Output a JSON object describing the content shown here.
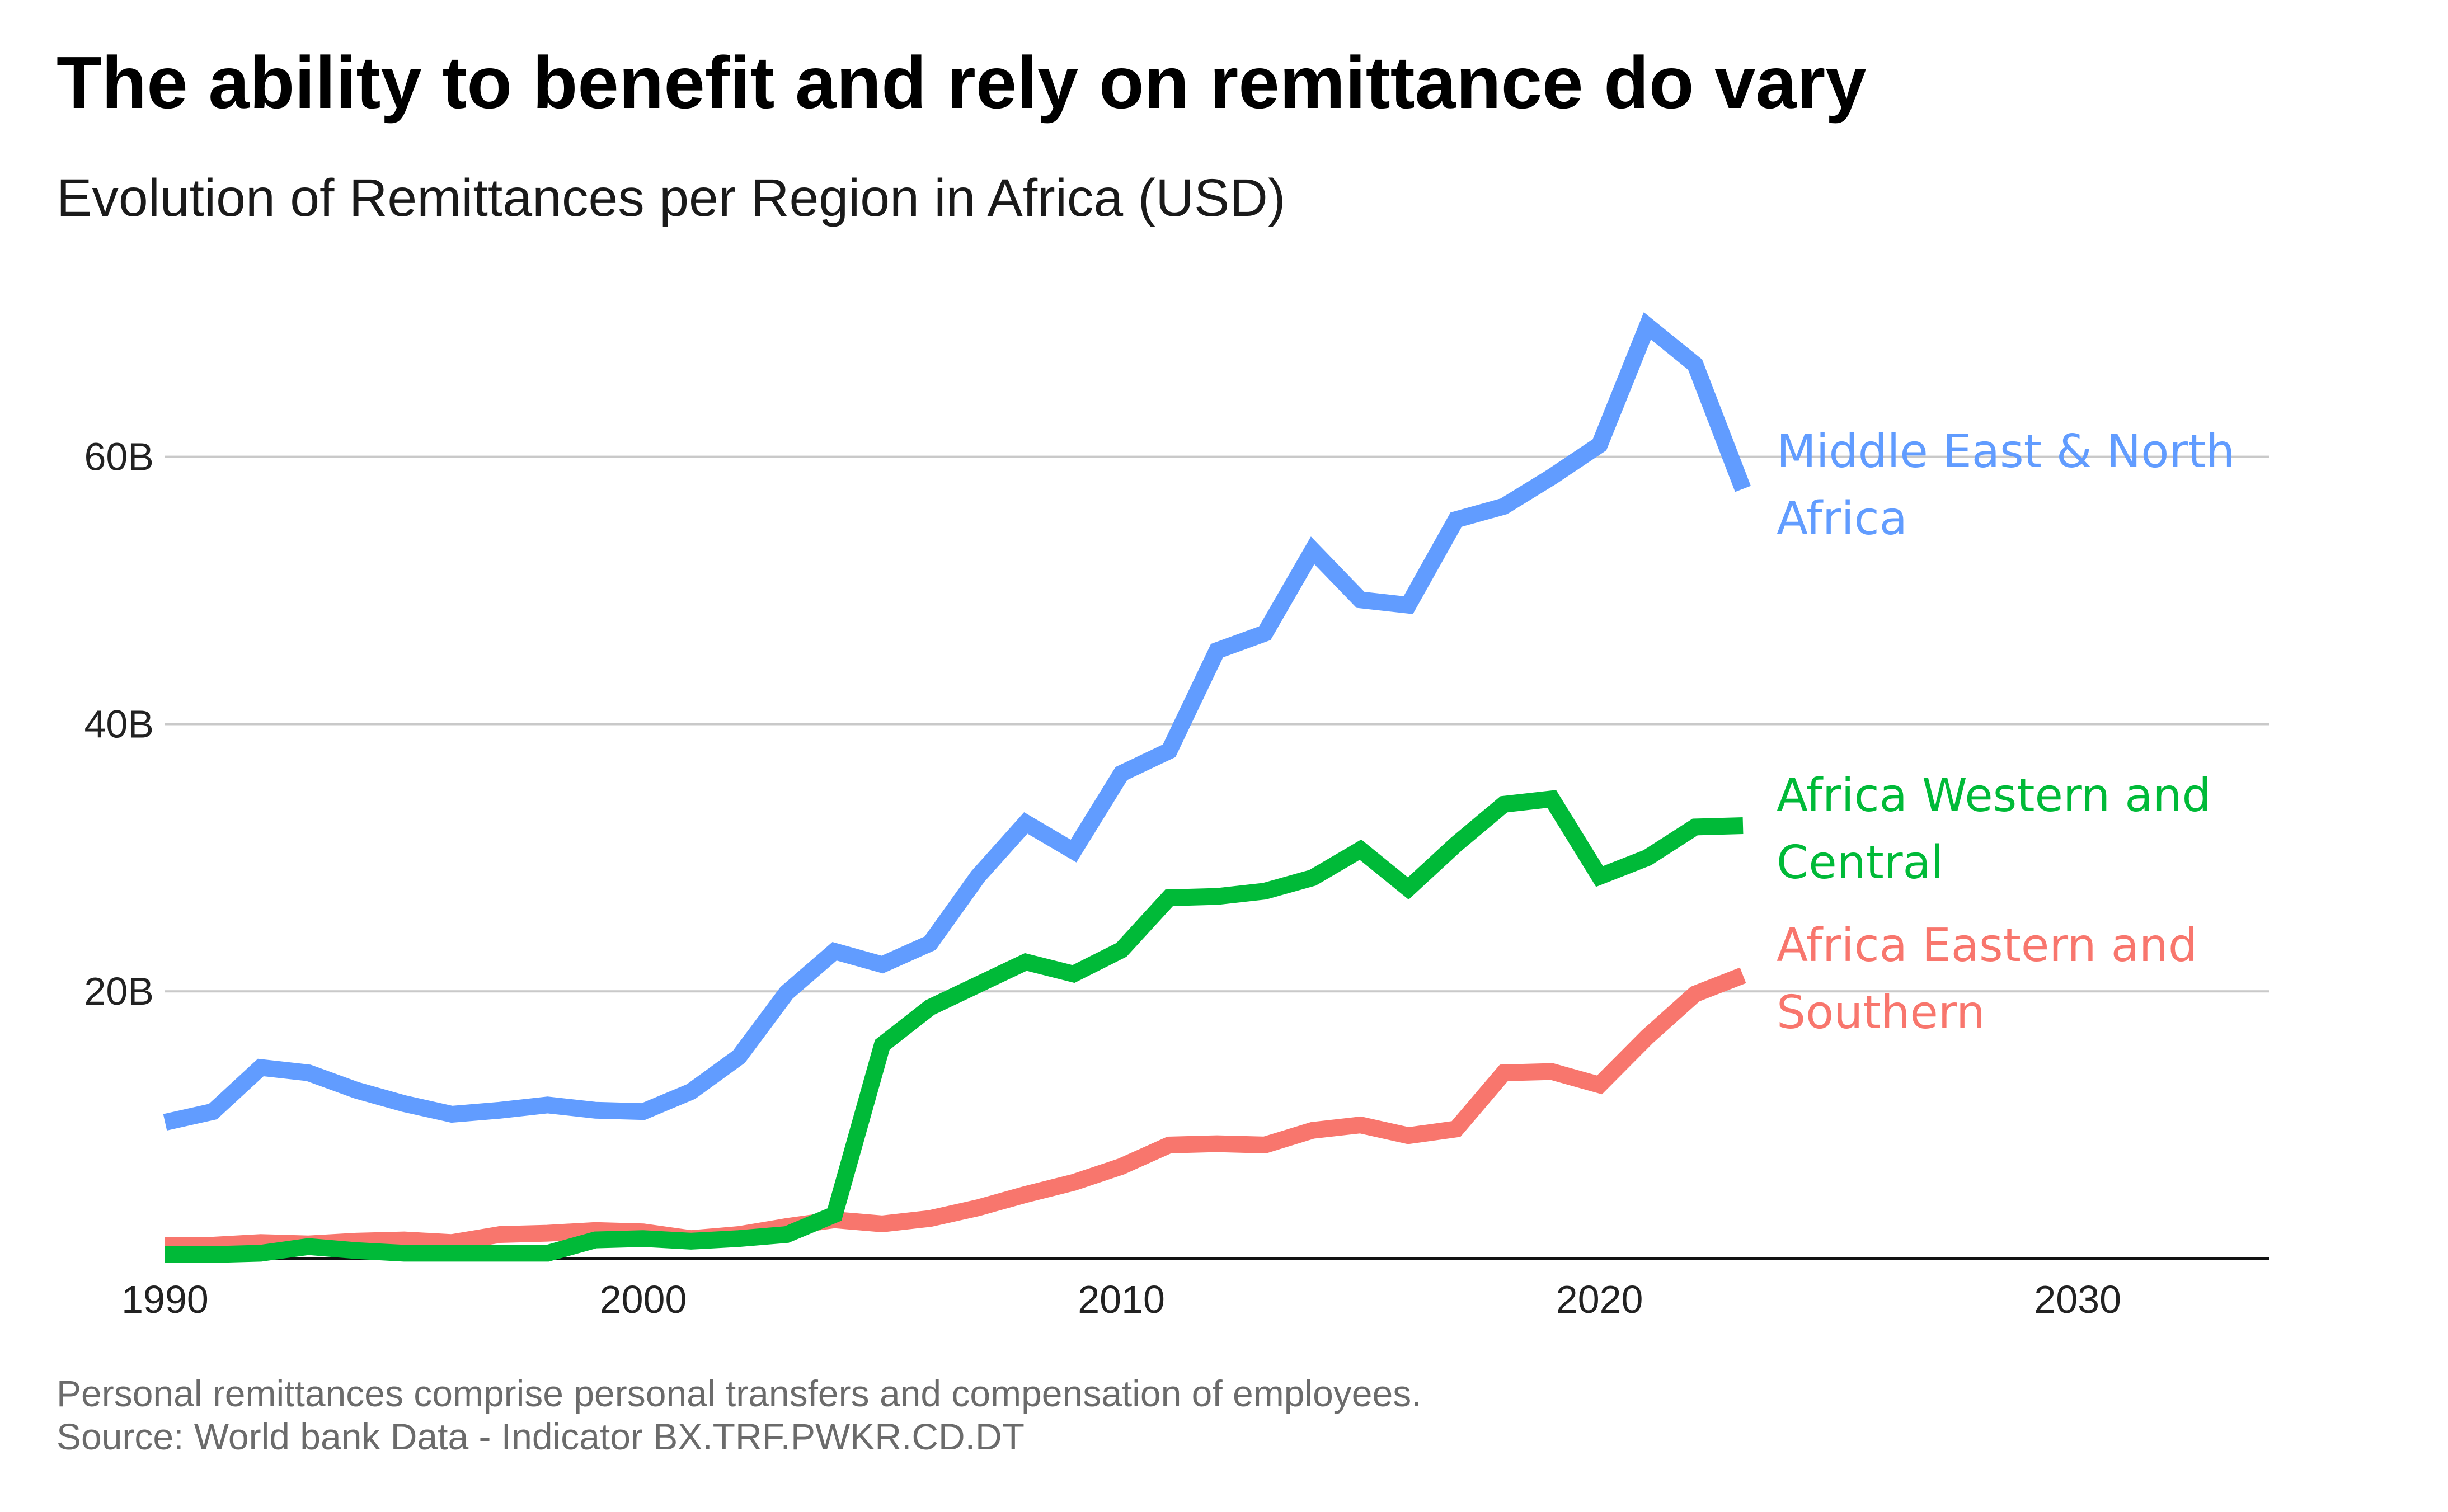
{
  "title": "The ability to benefit and rely on remittance do vary",
  "subtitle": "Evolution of Remittances per Region in Africa (USD)",
  "caption": {
    "line1": "Personal remittances comprise personal transfers and compensation of employees.",
    "line2": "Source: World bank Data - Indicator BX.TRF.PWKR.CD.DT"
  },
  "chart_data": {
    "type": "line",
    "x_ticks": [
      1990,
      2000,
      2010,
      2020,
      2030
    ],
    "x_tick_labels": [
      "1990",
      "2000",
      "2010",
      "2020",
      "2030"
    ],
    "y_ticks": [
      20,
      40,
      60
    ],
    "y_tick_labels": [
      "20B",
      "40B",
      "60B"
    ],
    "xlim": [
      1990,
      2034
    ],
    "ylim": [
      0,
      72
    ],
    "grid": true,
    "legend": "direct labels at line ends (right)",
    "x": [
      1990,
      1991,
      1992,
      1993,
      1994,
      1995,
      1996,
      1997,
      1998,
      1999,
      2000,
      2001,
      2002,
      2003,
      2004,
      2005,
      2006,
      2007,
      2008,
      2009,
      2010,
      2011,
      2012,
      2013,
      2014,
      2015,
      2016,
      2017,
      2018,
      2019,
      2020,
      2021,
      2022,
      2023
    ],
    "series": [
      {
        "name": "Middle East & North Africa",
        "label_lines": [
          "Middle East & North",
          "Africa"
        ],
        "color": "#619CFF",
        "values": [
          10.2,
          11.0,
          14.3,
          13.9,
          12.6,
          11.6,
          10.8,
          11.1,
          11.5,
          11.1,
          11.0,
          12.5,
          15.1,
          19.9,
          23.0,
          22.0,
          23.6,
          28.6,
          32.6,
          30.5,
          36.3,
          38.0,
          45.5,
          46.8,
          53.0,
          49.3,
          48.9,
          55.3,
          56.3,
          58.5,
          60.9,
          69.8,
          66.9,
          57.6
        ]
      },
      {
        "name": "Africa Western and Central",
        "label_lines": [
          "Africa Western and",
          "Central"
        ],
        "color": "#00BA38",
        "values": [
          0.3,
          0.3,
          0.4,
          0.9,
          0.6,
          0.4,
          0.4,
          0.4,
          0.4,
          1.4,
          1.5,
          1.3,
          1.5,
          1.8,
          3.3,
          16.0,
          18.8,
          20.5,
          22.2,
          21.3,
          23.1,
          27.0,
          27.1,
          27.5,
          28.5,
          30.6,
          27.7,
          31.0,
          34.0,
          34.4,
          28.6,
          30.0,
          32.3,
          32.4
        ]
      },
      {
        "name": "Africa Eastern and Southern",
        "label_lines": [
          "Africa Eastern and",
          "Southern"
        ],
        "color": "#F8766D",
        "values": [
          1.0,
          1.0,
          1.2,
          1.1,
          1.3,
          1.4,
          1.2,
          1.8,
          1.9,
          2.1,
          2.0,
          1.5,
          1.8,
          2.4,
          2.9,
          2.6,
          3.0,
          3.8,
          4.8,
          5.7,
          6.9,
          8.5,
          8.6,
          8.5,
          9.6,
          10.0,
          9.2,
          9.7,
          13.9,
          14.0,
          13.0,
          16.6,
          19.8,
          21.2
        ]
      }
    ]
  }
}
